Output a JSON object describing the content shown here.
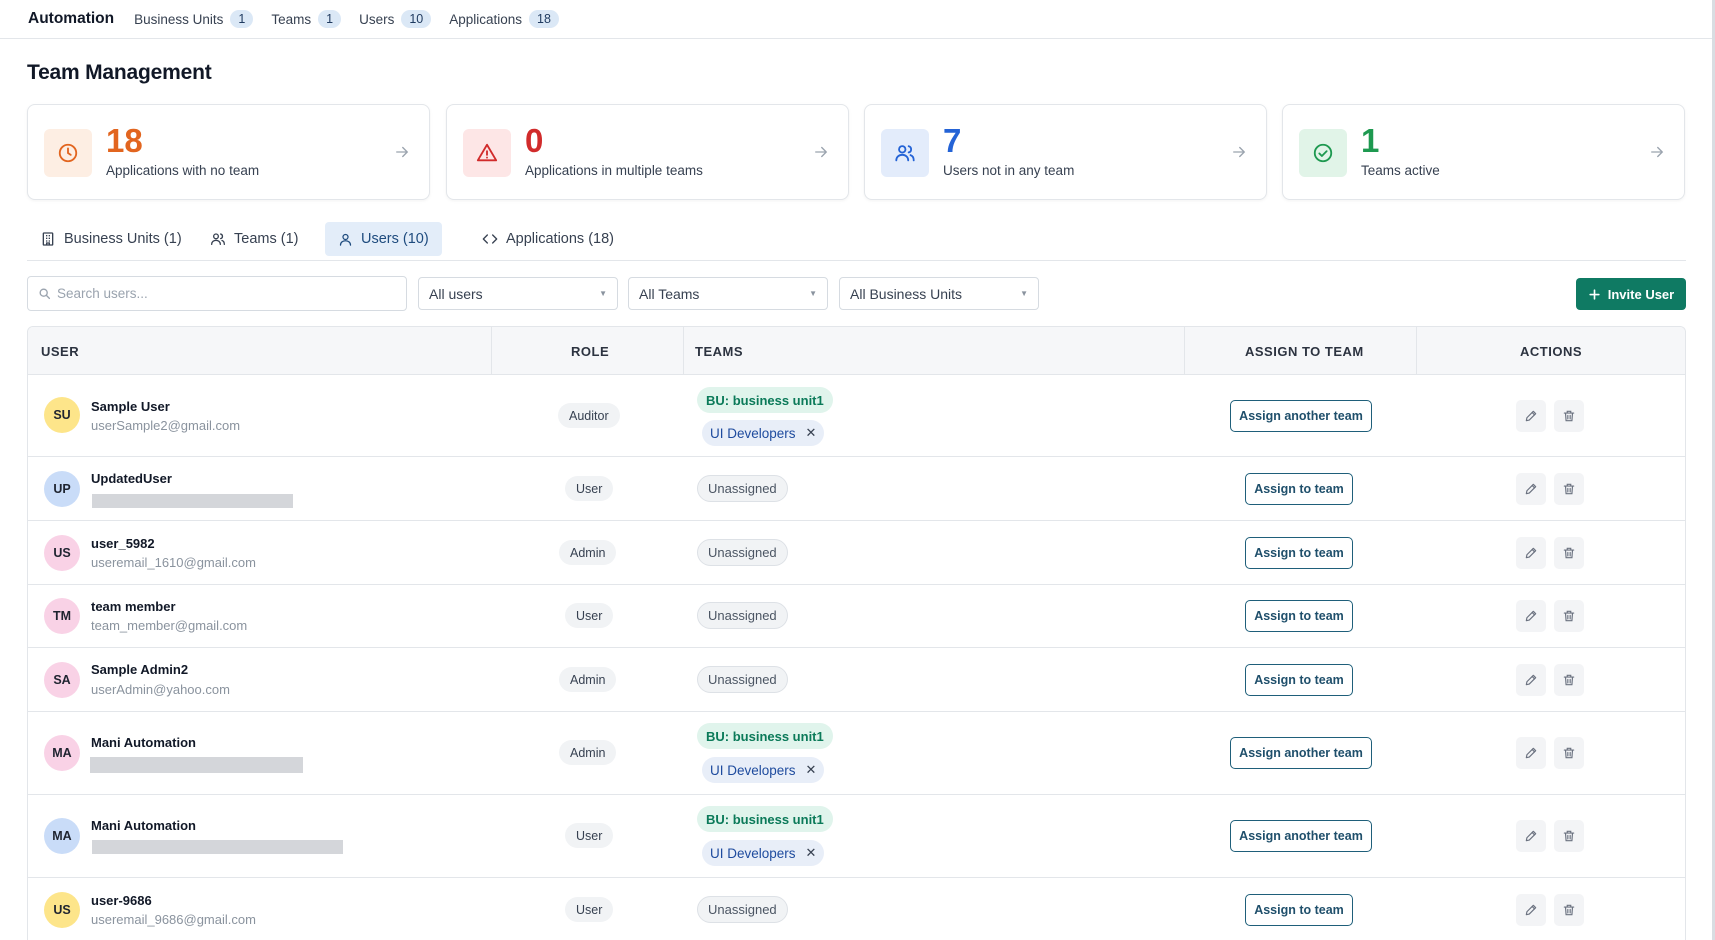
{
  "topnav": {
    "brand": "Automation",
    "items": [
      {
        "label": "Business Units",
        "count": "1"
      },
      {
        "label": "Teams",
        "count": "1"
      },
      {
        "label": "Users",
        "count": "10"
      },
      {
        "label": "Applications",
        "count": "18"
      }
    ]
  },
  "page": {
    "title": "Team Management"
  },
  "stats": [
    {
      "value": "18",
      "label": "Applications with no team",
      "icon": "clock-icon",
      "color": "#e2651f"
    },
    {
      "value": "0",
      "label": "Applications in multiple teams",
      "icon": "warning-icon",
      "color": "#d12b2b"
    },
    {
      "value": "7",
      "label": "Users not in any team",
      "icon": "users-icon",
      "color": "#2463d6"
    },
    {
      "value": "1",
      "label": "Teams active",
      "icon": "check-circle-icon",
      "color": "#1e9950"
    }
  ],
  "tabs": [
    {
      "label": "Business Units (1)",
      "icon": "building-icon",
      "active": false
    },
    {
      "label": "Teams (1)",
      "icon": "users-icon",
      "active": false
    },
    {
      "label": "Users (10)",
      "icon": "user-icon",
      "active": true
    },
    {
      "label": "Applications (18)",
      "icon": "code-icon",
      "active": false
    }
  ],
  "toolbar": {
    "search_placeholder": "Search users...",
    "filter_users": "All users",
    "filter_teams": "All Teams",
    "filter_bus": "All Business Units",
    "invite_label": "Invite User"
  },
  "table": {
    "headers": {
      "user": "USER",
      "role": "ROLE",
      "teams": "TEAMS",
      "assign": "ASSIGN TO TEAM",
      "actions": "ACTIONS"
    },
    "rows": [
      {
        "initials": "SU",
        "name": "Sample User",
        "email": "userSample2@gmail.com",
        "role": "Auditor",
        "bu": "BU: business unit1",
        "team": "UI Developers",
        "assign": "Assign another team"
      },
      {
        "initials": "UP",
        "name": "UpdatedUser",
        "email": "",
        "role": "User",
        "unassigned": "Unassigned",
        "assign": "Assign to team"
      },
      {
        "initials": "US",
        "name": "user_5982",
        "email": "useremail_1610@gmail.com",
        "role": "Admin",
        "unassigned": "Unassigned",
        "assign": "Assign to team"
      },
      {
        "initials": "TM",
        "name": "team member",
        "email": "team_member@gmail.com",
        "role": "User",
        "unassigned": "Unassigned",
        "assign": "Assign to team"
      },
      {
        "initials": "SA",
        "name": "Sample Admin2",
        "email": "userAdmin@yahoo.com",
        "role": "Admin",
        "unassigned": "Unassigned",
        "assign": "Assign to team"
      },
      {
        "initials": "MA",
        "name": "Mani Automation",
        "email": "",
        "role": "Admin",
        "bu": "BU: business unit1",
        "team": "UI Developers",
        "assign": "Assign another team"
      },
      {
        "initials": "MA",
        "name": "Mani Automation",
        "email": "",
        "role": "User",
        "bu": "BU: business unit1",
        "team": "UI Developers",
        "assign": "Assign another team"
      },
      {
        "initials": "US",
        "name": "user-9686",
        "email": "useremail_9686@gmail.com",
        "role": "User",
        "unassigned": "Unassigned",
        "assign": "Assign to team"
      }
    ]
  },
  "colors": {
    "primary": "#0f7a63",
    "avatar_yellow": "#fde58a",
    "avatar_blue": "#c9dcf8",
    "avatar_pink": "#f9d2e6"
  }
}
